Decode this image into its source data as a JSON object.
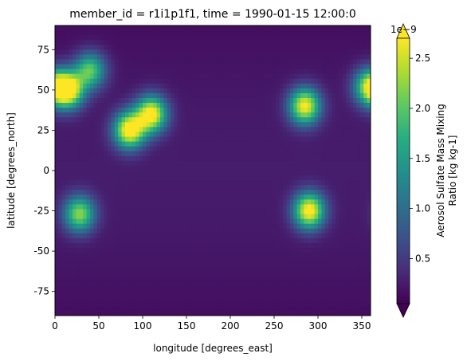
{
  "chart_data": {
    "type": "heatmap",
    "title": "member_id = r1i1p1f1, time = 1990-01-15 12:00:0",
    "xlabel": "longitude [degrees_east]",
    "ylabel": "latitude [degrees_north]",
    "xlim": [
      0,
      360
    ],
    "ylim": [
      -90,
      90
    ],
    "xticks": [
      0,
      50,
      100,
      150,
      200,
      250,
      300,
      350
    ],
    "yticks": [
      -75,
      -50,
      -25,
      0,
      25,
      50,
      75
    ],
    "colorbar": {
      "label_line1": "Aerosol Sulfate Mass Mixing",
      "label_line2": "Ratio [kg kg-1]",
      "offset_text": "1e−9",
      "ticks": [
        0.5,
        1.0,
        1.5,
        2.0,
        2.5
      ],
      "range": [
        0.05,
        2.7
      ],
      "extend": "both",
      "colormap": "viridis"
    },
    "field_description_values": {
      "background_level": 0.25,
      "hotspots": [
        {
          "lon": 15,
          "lat": 50,
          "level": 2.7
        },
        {
          "lon": 85,
          "lat": 25,
          "level": 2.7
        },
        {
          "lon": 110,
          "lat": 35,
          "level": 2.6
        },
        {
          "lon": 285,
          "lat": 40,
          "level": 2.5
        },
        {
          "lon": 290,
          "lat": -25,
          "level": 2.6
        },
        {
          "lon": 28,
          "lat": -27,
          "level": 2.0
        },
        {
          "lon": 40,
          "lat": 62,
          "level": 1.8
        },
        {
          "lon": 358,
          "lat": 52,
          "level": 1.9
        }
      ]
    }
  }
}
